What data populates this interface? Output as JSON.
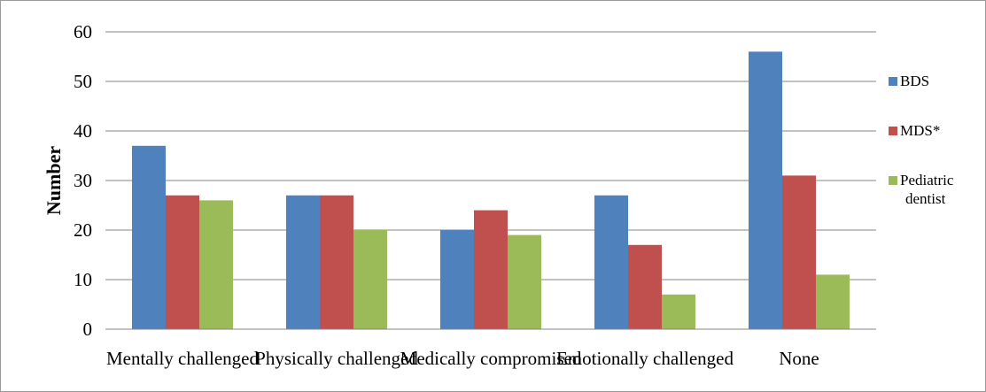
{
  "chart_data": {
    "type": "bar",
    "categories": [
      "Mentally challenged",
      "Physically challenged",
      "Medically compromised",
      "Emotionally challenged",
      "None"
    ],
    "series": [
      {
        "name": "BDS",
        "values": [
          37,
          27,
          20,
          27,
          56
        ],
        "color": "#4F81BD"
      },
      {
        "name": "MDS*",
        "values": [
          27,
          27,
          24,
          17,
          31
        ],
        "color": "#C0504D"
      },
      {
        "name": "Pediatric dentist",
        "legend_lines": [
          "Pediatric",
          "dentist"
        ],
        "values": [
          26,
          20,
          19,
          7,
          11
        ],
        "color": "#9BBB59"
      }
    ],
    "xlabel": "",
    "ylabel": "Number",
    "ylim": [
      0,
      60
    ],
    "yticks": [
      0,
      10,
      20,
      30,
      40,
      50,
      60
    ],
    "grid": true,
    "legend_position": "right"
  }
}
